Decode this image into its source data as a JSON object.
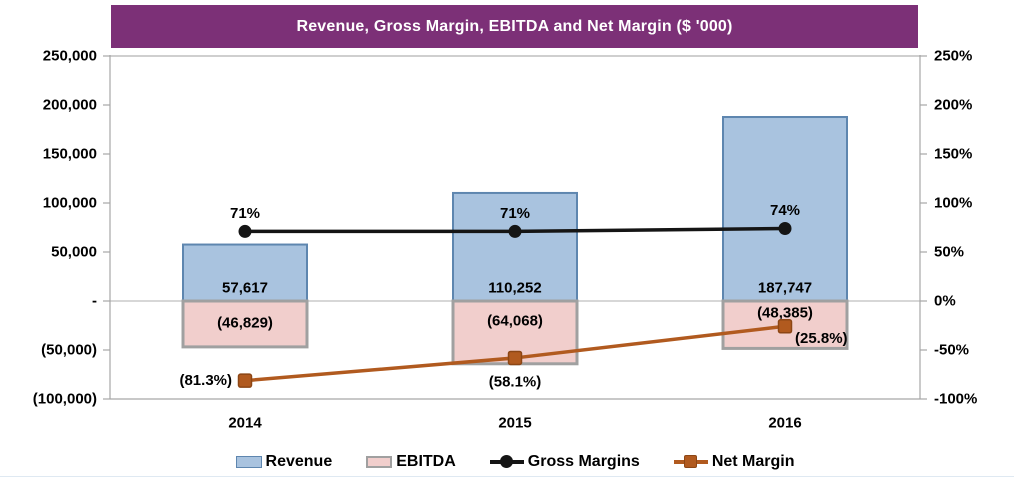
{
  "title": "Revenue, Gross Margin, EBITDA and Net Margin ($ '000)",
  "colors": {
    "title_bar": "#7C3077",
    "title_text": "#FFFFFF",
    "revenue_fill": "#A9C3DF",
    "revenue_border": "#5E86AF",
    "ebitda_fill": "#F1CECC",
    "ebitda_border": "#A0A0A0",
    "gross_margin_line": "#151515",
    "net_margin_line": "#B15A1F",
    "net_margin_marker_border": "#8C4615",
    "axis_line": "#A6A6A6",
    "gridline": "#BFBFBF",
    "text": "#000000"
  },
  "chart_data": {
    "type": "combo (bar + line, dual axis)",
    "title": "Revenue, Gross Margin, EBITDA and Net Margin ($ '000)",
    "categories": [
      "2014",
      "2015",
      "2016"
    ],
    "series": [
      {
        "name": "Revenue",
        "chart": "bar",
        "axis": "left",
        "values": [
          57617,
          110252,
          187747
        ],
        "data_labels": [
          "57,617",
          "110,252",
          "187,747"
        ],
        "fill": "#A9C3DF",
        "stroke": "#5E86AF",
        "stroke_width": 2
      },
      {
        "name": "EBITDA",
        "chart": "bar",
        "axis": "left",
        "values": [
          -46829,
          -64068,
          -48385
        ],
        "data_labels": [
          "(46,829)",
          "(64,068)",
          "(48,385)"
        ],
        "fill": "#F1CECC",
        "stroke": "#A0A0A0",
        "stroke_width": 3
      },
      {
        "name": "Gross Margins",
        "chart": "line",
        "axis": "right",
        "marker": "circle",
        "values": [
          0.71,
          0.71,
          0.74
        ],
        "data_labels": [
          "71%",
          "71%",
          "74%"
        ],
        "color": "#151515"
      },
      {
        "name": "Net Margin",
        "chart": "line",
        "axis": "right",
        "marker": "square",
        "values": [
          -0.813,
          -0.581,
          -0.258
        ],
        "data_labels": [
          "(81.3%)",
          "(58.1%)",
          "(25.8%)"
        ],
        "color": "#B15A1F",
        "marker_border": "#8C4615"
      }
    ],
    "left_axis": {
      "min": -100000,
      "max": 250000,
      "step": 50000,
      "tick_labels": [
        "250,000",
        "200,000",
        "150,000",
        "100,000",
        "50,000",
        "-",
        "(50,000)",
        "(100,000)"
      ]
    },
    "right_axis": {
      "min": -1.0,
      "max": 2.5,
      "step": 0.5,
      "tick_labels": [
        "250%",
        "200%",
        "150%",
        "100%",
        "50%",
        "0%",
        "-50%",
        "-100%"
      ]
    },
    "gridlines": "top border and zero line only",
    "legend_position": "bottom"
  },
  "legend": [
    {
      "label": "Revenue",
      "swatch": "bar",
      "color": "#A9C3DF",
      "border": "#5E86AF"
    },
    {
      "label": "EBITDA",
      "swatch": "bar",
      "color": "#F1CECC",
      "border": "#A0A0A0"
    },
    {
      "label": "Gross Margins",
      "swatch": "line-circle",
      "color": "#151515"
    },
    {
      "label": "Net Margin",
      "swatch": "line-square",
      "color": "#B15A1F",
      "marker_border": "#8C4615"
    }
  ]
}
